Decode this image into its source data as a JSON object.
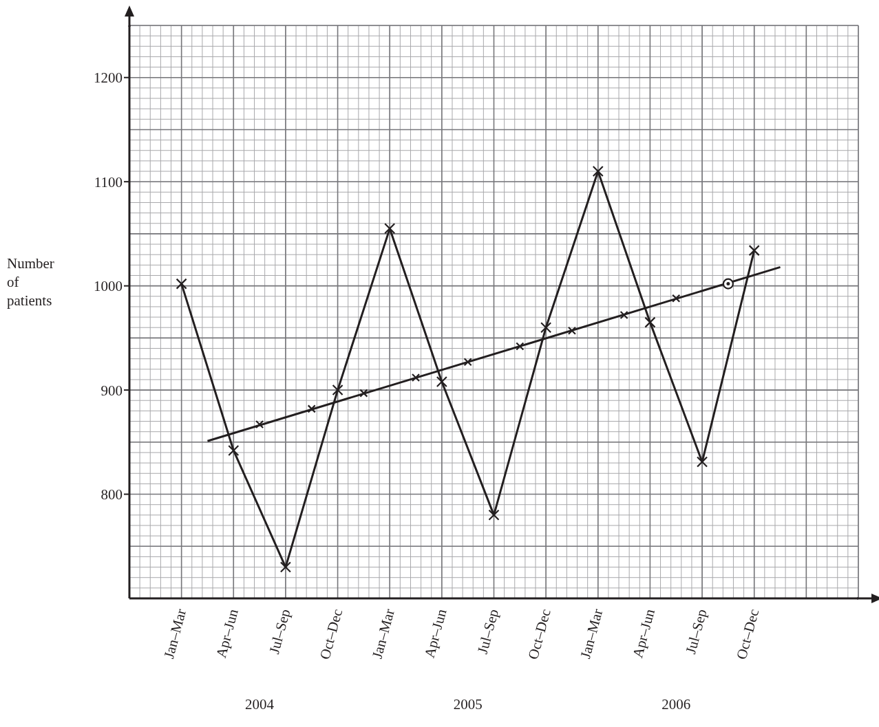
{
  "chart_data": {
    "type": "line",
    "ylabel": "Number of patients",
    "categories": [
      null,
      null,
      "Jan–Mar",
      null,
      "Apr–Jun",
      null,
      "Jul–Sep",
      null,
      "Oct–Dec",
      null,
      "Jan–Mar",
      null,
      "Apr–Jun",
      null,
      "Jul–Sep",
      null,
      "Oct–Dec",
      null,
      "Jan–Mar",
      null,
      "Apr–Jun",
      null,
      "Jul–Sep",
      null,
      "Oct–Dec",
      null,
      null,
      null,
      null
    ],
    "series": [
      {
        "color": "#231f20",
        "marker": "cross",
        "values": [
          null,
          null,
          1002,
          null,
          842,
          null,
          730,
          null,
          900,
          null,
          1055,
          null,
          908,
          null,
          780,
          null,
          960,
          null,
          1110,
          null,
          965,
          null,
          831,
          null,
          1034,
          null,
          null,
          null,
          null
        ]
      },
      {
        "type": "scatter",
        "color": "#231f20",
        "marker": "cross",
        "values": [
          null,
          null,
          null,
          null,
          null,
          867,
          null,
          882,
          null,
          897,
          null,
          912,
          null,
          927,
          null,
          942,
          null,
          957,
          null,
          972,
          null,
          988,
          null,
          null,
          null,
          null,
          null,
          null,
          null
        ]
      },
      {
        "type": "line",
        "color": "#231f20",
        "marker": "none",
        "values": [
          null,
          null,
          null,
          851,
          null,
          null,
          null,
          null,
          null,
          null,
          null,
          null,
          null,
          null,
          null,
          null,
          null,
          null,
          null,
          null,
          null,
          null,
          null,
          null,
          null,
          1018,
          null,
          null,
          null
        ]
      },
      {
        "type": "scatter",
        "color": "#231f20",
        "marker": "circle",
        "values": [
          null,
          null,
          null,
          null,
          null,
          null,
          null,
          null,
          null,
          null,
          null,
          null,
          null,
          null,
          null,
          null,
          null,
          null,
          null,
          null,
          null,
          null,
          null,
          1002,
          null,
          null,
          null,
          null,
          null
        ]
      }
    ],
    "ylim": [
      700,
      1250
    ],
    "yticks": [
      800,
      900,
      1000,
      1100,
      1200
    ],
    "grid": true,
    "line_style": "solid",
    "annotations": [
      "2004",
      "2005",
      "2006"
    ]
  }
}
